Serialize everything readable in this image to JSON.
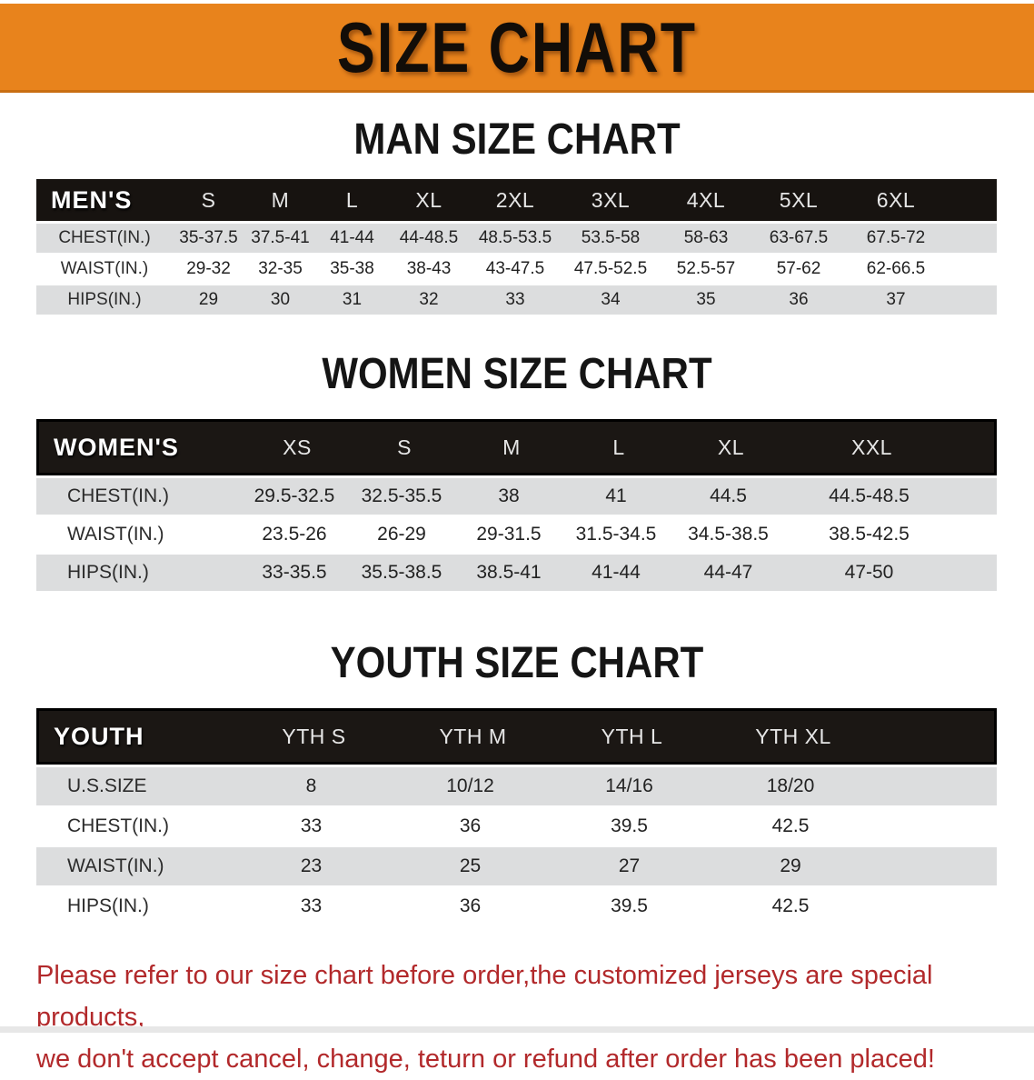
{
  "banner": {
    "title": "SIZE CHART",
    "bg_color": "#E8831C"
  },
  "colors": {
    "header_bg": "#171310",
    "row_alt": "#DCDDDE",
    "disclaimer_text": "#B2292B"
  },
  "men": {
    "heading": "MAN SIZE CHART",
    "label": "MEN'S",
    "sizes": [
      "S",
      "M",
      "L",
      "XL",
      "2XL",
      "3XL",
      "4XL",
      "5XL",
      "6XL"
    ],
    "rows": [
      {
        "label": "CHEST(IN.)",
        "cells": [
          "35-37.5",
          "37.5-41",
          "41-44",
          "44-48.5",
          "48.5-53.5",
          "53.5-58",
          "58-63",
          "63-67.5",
          "67.5-72"
        ]
      },
      {
        "label": "WAIST(IN.)",
        "cells": [
          "29-32",
          "32-35",
          "35-38",
          "38-43",
          "43-47.5",
          "47.5-52.5",
          "52.5-57",
          "57-62",
          "62-66.5"
        ]
      },
      {
        "label": "HIPS(IN.)",
        "cells": [
          "29",
          "30",
          "31",
          "32",
          "33",
          "34",
          "35",
          "36",
          "37"
        ]
      }
    ]
  },
  "women": {
    "heading": "WOMEN SIZE CHART",
    "label": "WOMEN'S",
    "sizes": [
      "XS",
      "S",
      "M",
      "L",
      "XL",
      "XXL"
    ],
    "rows": [
      {
        "label": "CHEST(IN.)",
        "cells": [
          "29.5-32.5",
          "32.5-35.5",
          "38",
          "41",
          "44.5",
          "44.5-48.5"
        ]
      },
      {
        "label": "WAIST(IN.)",
        "cells": [
          "23.5-26",
          "26-29",
          "29-31.5",
          "31.5-34.5",
          "34.5-38.5",
          "38.5-42.5"
        ]
      },
      {
        "label": "HIPS(IN.)",
        "cells": [
          "33-35.5",
          "35.5-38.5",
          "38.5-41",
          "41-44",
          "44-47",
          "47-50"
        ]
      }
    ]
  },
  "youth": {
    "heading": "YOUTH SIZE CHART",
    "label": "YOUTH",
    "sizes": [
      "YTH S",
      "YTH M",
      "YTH L",
      "YTH XL"
    ],
    "rows": [
      {
        "label": "U.S.SIZE",
        "cells": [
          "8",
          "10/12",
          "14/16",
          "18/20"
        ]
      },
      {
        "label": "CHEST(IN.)",
        "cells": [
          "33",
          "36",
          "39.5",
          "42.5"
        ]
      },
      {
        "label": "WAIST(IN.)",
        "cells": [
          "23",
          "25",
          "27",
          "29"
        ]
      },
      {
        "label": "HIPS(IN.)",
        "cells": [
          "33",
          "36",
          "39.5",
          "42.5"
        ]
      }
    ]
  },
  "disclaimer": {
    "line1": "Please refer to our size chart before order,the customized jerseys are special products,",
    "line2": "we don't accept cancel, change, teturn or refund after order has been placed!"
  }
}
